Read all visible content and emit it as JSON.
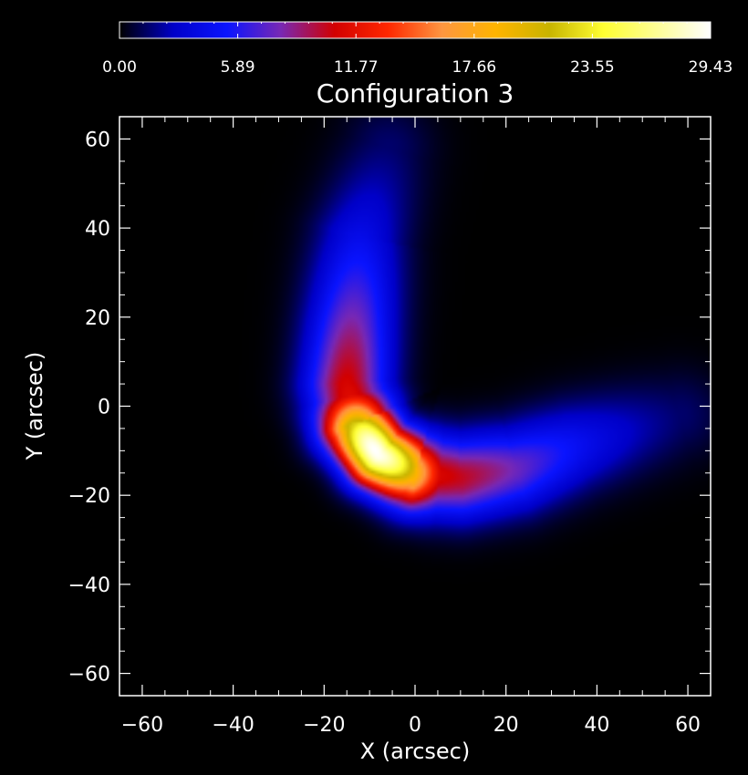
{
  "chart_data": {
    "type": "heatmap",
    "title": "Configuration 3",
    "xlabel": "X (arcsec)",
    "ylabel": "Y (arcsec)",
    "xlim": [
      -65,
      65
    ],
    "ylim": [
      -65,
      65
    ],
    "x_ticks": [
      -60,
      -40,
      -20,
      0,
      20,
      40,
      60
    ],
    "y_ticks": [
      -60,
      -40,
      -20,
      0,
      20,
      40,
      60
    ],
    "colorbar": {
      "range": [
        0.0,
        29.43
      ],
      "tick_labels": [
        "0.00",
        "5.89",
        "11.77",
        "17.66",
        "23.55",
        "29.43"
      ],
      "colormap": [
        "#000000",
        "#0000c8",
        "#0a14ff",
        "#7828b4",
        "#d20000",
        "#ff2800",
        "#ff9640",
        "#ffb400",
        "#c8b400",
        "#ffff32",
        "#ffff96",
        "#ffffff"
      ]
    },
    "source": {
      "shape": "curved crescent (loop) emission",
      "peak_value": 29.43,
      "peak_location": [
        -9,
        -10
      ],
      "ridge": [
        [
          -6,
          58
        ],
        [
          -12,
          38
        ],
        [
          -14,
          18
        ],
        [
          -15,
          5
        ],
        [
          -13,
          -4
        ],
        [
          -8,
          -11
        ],
        [
          0,
          -15
        ],
        [
          10,
          -16
        ],
        [
          22,
          -14
        ],
        [
          35,
          -9
        ],
        [
          48,
          -5
        ],
        [
          58,
          -2
        ]
      ]
    }
  }
}
